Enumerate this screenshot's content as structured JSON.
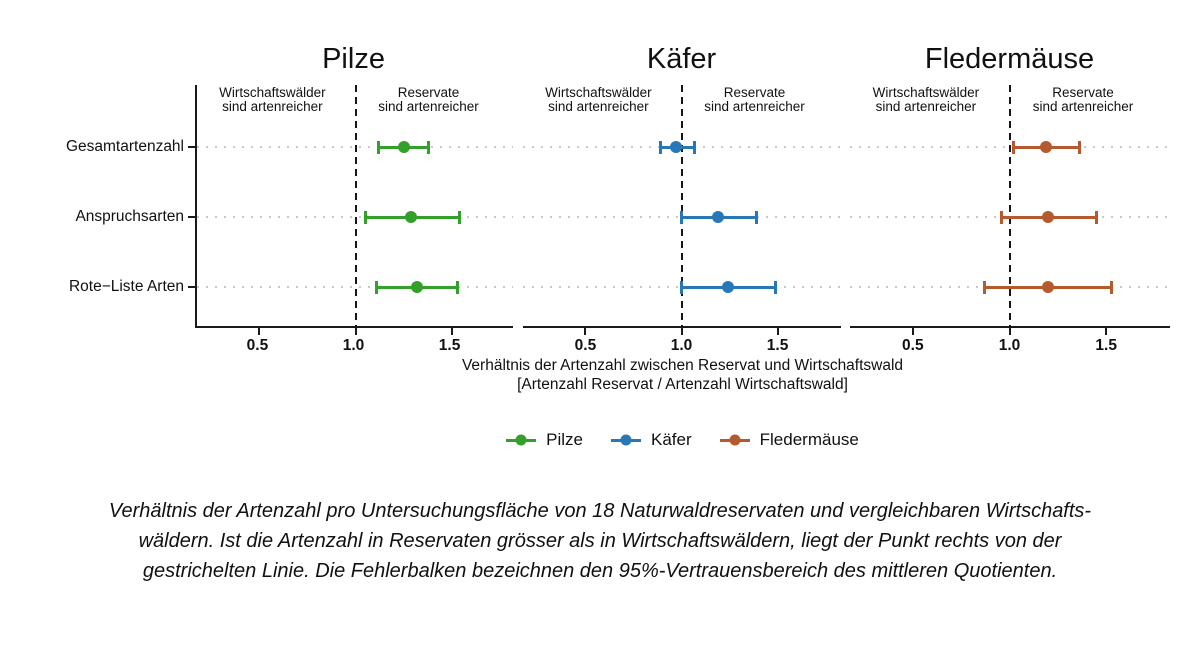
{
  "chart_data": {
    "type": "scatter",
    "subtype": "dot-and-errorbar (forest plot), 3 facets",
    "categories": [
      "Gesamtartenzahl",
      "Anspruchsarten",
      "Rote−Liste Arten"
    ],
    "xlim": [
      0.175,
      1.83
    ],
    "reference_x": 1.0,
    "x_ticks": [
      0.5,
      1.0,
      1.5
    ],
    "x_tick_labels": [
      "0.5",
      "1.0",
      "1.5"
    ],
    "grid": "dotted horizontal gridlines per category",
    "legend_position": "bottom",
    "annotations": {
      "left": [
        "Wirtschaftswälder",
        "sind artenreicher"
      ],
      "right": [
        "Reservate",
        "sind artenreicher"
      ]
    },
    "panels": [
      {
        "name": "Pilze",
        "color": "#33a02c",
        "points": [
          {
            "category": "Gesamtartenzahl",
            "value": 1.25,
            "ci": [
              1.12,
              1.38
            ]
          },
          {
            "category": "Anspruchsarten",
            "value": 1.29,
            "ci": [
              1.05,
              1.54
            ]
          },
          {
            "category": "Rote−Liste Arten",
            "value": 1.32,
            "ci": [
              1.11,
              1.53
            ]
          }
        ]
      },
      {
        "name": "Käfer",
        "color": "#2878b8",
        "points": [
          {
            "category": "Gesamtartenzahl",
            "value": 0.97,
            "ci": [
              0.89,
              1.07
            ]
          },
          {
            "category": "Anspruchsarten",
            "value": 1.19,
            "ci": [
              1.0,
              1.39
            ]
          },
          {
            "category": "Rote−Liste Arten",
            "value": 1.24,
            "ci": [
              1.0,
              1.49
            ]
          }
        ]
      },
      {
        "name": "Fledermäuse",
        "color": "#b5592e",
        "points": [
          {
            "category": "Gesamtartenzahl",
            "value": 1.19,
            "ci": [
              1.02,
              1.36
            ]
          },
          {
            "category": "Anspruchsarten",
            "value": 1.2,
            "ci": [
              0.96,
              1.45
            ]
          },
          {
            "category": "Rote−Liste Arten",
            "value": 1.2,
            "ci": [
              0.87,
              1.53
            ]
          }
        ]
      }
    ],
    "xlabel_lines": [
      "Verhältnis der Artenzahl zwischen Reservat und Wirtschaftswald",
      "[Artenzahl Reservat / Artenzahl Wirtschaftswald]"
    ]
  },
  "legend": {
    "entries": [
      {
        "label": "Pilze",
        "color": "#33a02c"
      },
      {
        "label": "Käfer",
        "color": "#2878b8"
      },
      {
        "label": "Fledermäuse",
        "color": "#b5592e"
      }
    ]
  },
  "caption": {
    "lines": [
      "Verhältnis der Artenzahl pro Untersuchungsfläche von 18 Naturwaldreservaten und vergleichbaren Wirtschafts-",
      "wäldern. Ist die Artenzahl in Reservaten grösser als in Wirtschaftswäldern, liegt der Punkt rechts von der",
      "gestrichelten Linie. Die Fehlerbalken bezeichnen den 95%-Vertrauensbereich des mittleren Quotienten."
    ]
  },
  "colors": {
    "axis": "#1a1a1a",
    "gridline": "#c9c9c9",
    "background": "#ffffff"
  }
}
